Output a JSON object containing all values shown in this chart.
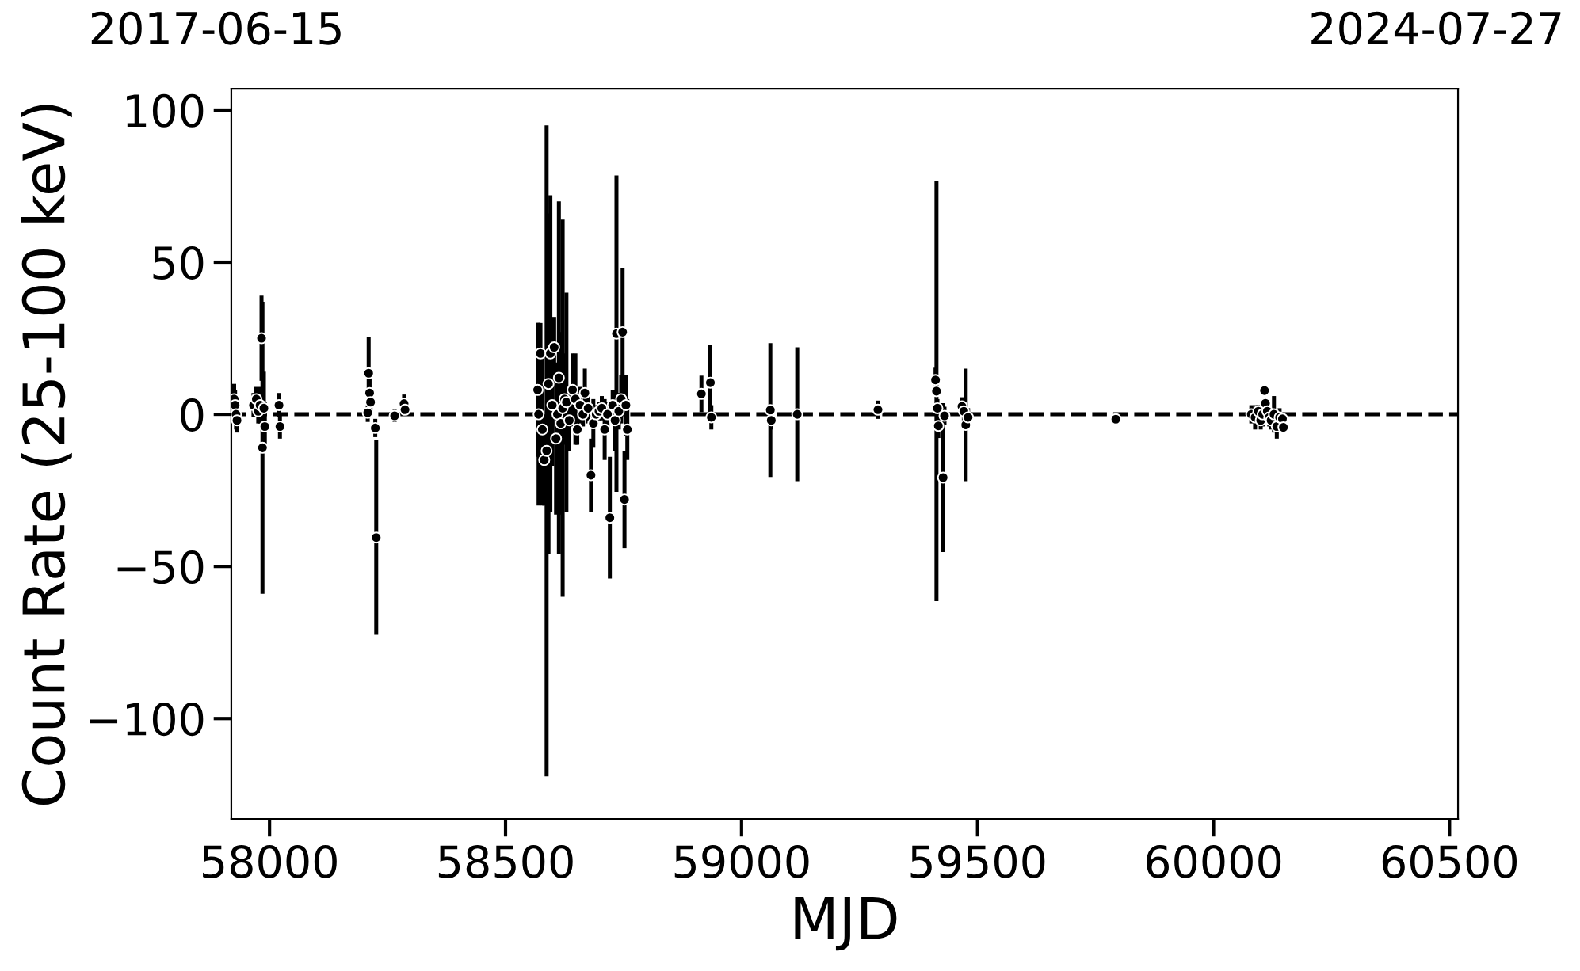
{
  "chart_data": {
    "type": "scatter",
    "xlabel": "MJD",
    "ylabel": "Count Rate (25-100 keV)",
    "xlim": [
      57919,
      60518
    ],
    "xticks": [
      58000,
      58500,
      59000,
      59500,
      60000,
      60500
    ],
    "ylim": [
      -133,
      107
    ],
    "yticks": [
      {
        "value": -100,
        "label": "−100"
      },
      {
        "value": -50,
        "label": "−50"
      },
      0,
      50,
      100
    ],
    "annotations": [
      "2017-06-15",
      "2024-07-27"
    ],
    "marker": "circle",
    "grid": false,
    "legend": false,
    "ref_lines": [
      {
        "axis": "y",
        "value": 0,
        "color": "#000000",
        "line_style": "dashed"
      }
    ],
    "series": [
      {
        "color": "#000000",
        "x": [
          57925,
          57927,
          57929,
          57931,
          57966,
          57972,
          57976,
          57980,
          57983,
          57985,
          57988,
          57990,
          58020,
          58022,
          58208,
          58210,
          58212,
          58214,
          58224,
          58226,
          58265,
          58285,
          58287,
          58568,
          58570,
          58574,
          58578,
          58582,
          58587,
          58591,
          58595,
          58599,
          58603,
          58607,
          58610,
          58613,
          58617,
          58621,
          58625,
          58629,
          58635,
          58642,
          58648,
          58652,
          58658,
          58664,
          58668,
          58675,
          58681,
          58686,
          58692,
          58698,
          58704,
          58710,
          58716,
          58721,
          58727,
          58732,
          58735,
          58740,
          58745,
          58748,
          58752,
          58755,
          58758,
          58915,
          58934,
          58936,
          59061,
          59063,
          59118,
          59289,
          59411,
          59413,
          59415,
          59417,
          59427,
          59430,
          59467,
          59471,
          59475,
          59480,
          59793,
          60080,
          60088,
          60095,
          60100,
          60104,
          60108,
          60110,
          60114,
          60118,
          60122,
          60128,
          60134,
          60140,
          60146,
          60148
        ],
        "values": [
          5,
          3,
          0,
          -2,
          3,
          5,
          1,
          3,
          25,
          -11,
          2,
          -4,
          3,
          -4,
          0.5,
          13.5,
          7,
          4,
          -4.5,
          -40.5,
          -0.5,
          3.5,
          1.5,
          8,
          0,
          20,
          -5,
          -15,
          -12,
          10,
          20,
          3,
          22,
          -8,
          0,
          12,
          -3,
          2,
          5,
          4,
          -2,
          8,
          5,
          -5,
          3,
          0,
          7,
          2,
          -20,
          -3,
          0,
          1,
          2,
          -5,
          0,
          -34,
          3,
          -2,
          26.5,
          1,
          5,
          27,
          -28,
          3,
          -5,
          6.7,
          10.4,
          -1,
          1.4,
          -2,
          0,
          1.5,
          11.3,
          7.6,
          2,
          -3.8,
          -20.8,
          -0.5,
          2.6,
          1,
          -3.5,
          -1,
          -1.6,
          0,
          -1,
          1,
          -2,
          0,
          7.8,
          3.6,
          1,
          -1,
          -2,
          0,
          -4,
          -1,
          -1.5,
          -4.3
        ],
        "errors": [
          5,
          5,
          5,
          4,
          4,
          4,
          4,
          6,
          14,
          48,
          12,
          8,
          4,
          4,
          3,
          12,
          5,
          4,
          3,
          32,
          2,
          3,
          2,
          22,
          30,
          10,
          25,
          15,
          107,
          56,
          52,
          20,
          10,
          25,
          15,
          58,
          30,
          62,
          15,
          36,
          10,
          12,
          15,
          5,
          6,
          4,
          8,
          5,
          12,
          8,
          3,
          3,
          4,
          10,
          4,
          20,
          5,
          10,
          52,
          6,
          8,
          21,
          16,
          10,
          10,
          6,
          12.5,
          4,
          22,
          3,
          22,
          3,
          4,
          69,
          3,
          4,
          24.5,
          3,
          3,
          3,
          18.5,
          3,
          2,
          3,
          4,
          2,
          3,
          4,
          1,
          1,
          2,
          3,
          3,
          6,
          4,
          3,
          1,
          1
        ]
      }
    ]
  }
}
